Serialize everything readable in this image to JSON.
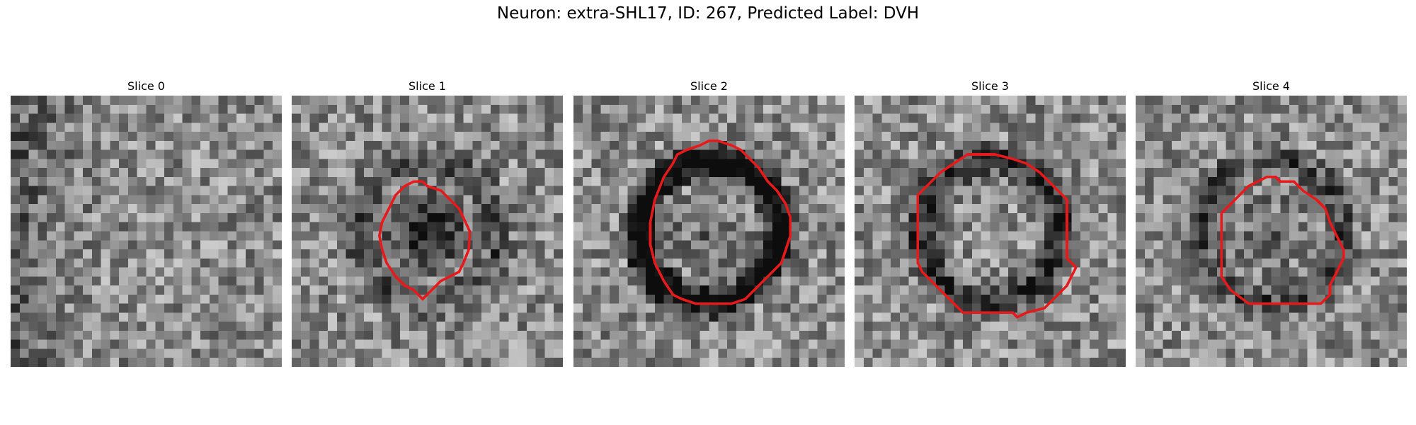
{
  "figure": {
    "title": "Neuron: extra-SHL17, ID: 267, Predicted Label: DVH"
  },
  "panels": [
    {
      "label": "Slice 0",
      "has_outline": false,
      "dark_center": 0.0,
      "dark_ring": 0.0,
      "seed": 11
    },
    {
      "label": "Slice 1",
      "has_outline": true,
      "dark_center": 0.55,
      "dark_ring": 0.25,
      "seed": 23
    },
    {
      "label": "Slice 2",
      "has_outline": true,
      "dark_center": 0.15,
      "dark_ring": 0.75,
      "seed": 37
    },
    {
      "label": "Slice 3",
      "has_outline": true,
      "dark_center": 0.0,
      "dark_ring": 0.45,
      "seed": 41
    },
    {
      "label": "Slice 4",
      "has_outline": true,
      "dark_center": 0.15,
      "dark_ring": 0.3,
      "seed": 53
    }
  ],
  "colors": {
    "outline": "#e8191b"
  }
}
